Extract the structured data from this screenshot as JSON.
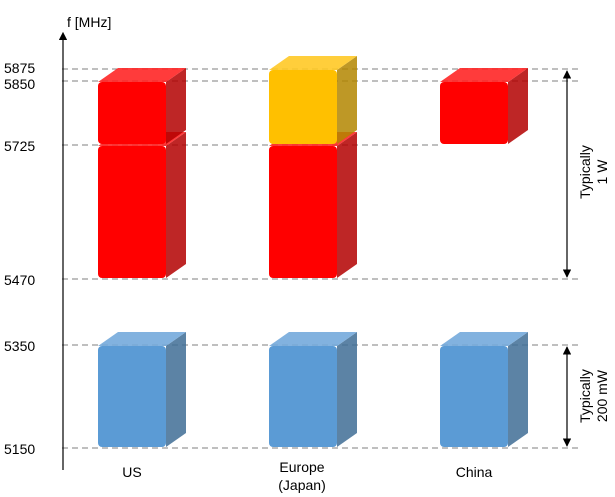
{
  "axis": {
    "label": "f [MHz]",
    "ticks": [
      "5875",
      "5850",
      "5725",
      "5470",
      "5350",
      "5150"
    ]
  },
  "regions": [
    {
      "label": "US"
    },
    {
      "label_line1": "Europe",
      "label_line2": "(Japan)"
    },
    {
      "label": "China"
    }
  ],
  "power_notes": {
    "upper_line1": "Typically",
    "upper_line2": "1 W",
    "lower_line1": "Typically",
    "lower_line2": "200 mW"
  },
  "colors": {
    "red": "#ff0000",
    "orange": "#ffc000",
    "blue": "#5b9bd5",
    "grid": "#7f7f7f"
  },
  "bands": [
    {
      "region": "US",
      "from": 5725,
      "to": 5850,
      "color": "red"
    },
    {
      "region": "US",
      "from": 5470,
      "to": 5725,
      "color": "red"
    },
    {
      "region": "US",
      "from": 5150,
      "to": 5350,
      "color": "blue"
    },
    {
      "region": "Europe (Japan)",
      "from": 5725,
      "to": 5875,
      "color": "orange"
    },
    {
      "region": "Europe (Japan)",
      "from": 5470,
      "to": 5725,
      "color": "red"
    },
    {
      "region": "Europe (Japan)",
      "from": 5150,
      "to": 5350,
      "color": "blue"
    },
    {
      "region": "China",
      "from": 5725,
      "to": 5850,
      "color": "red"
    },
    {
      "region": "China",
      "from": 5150,
      "to": 5350,
      "color": "blue"
    }
  ]
}
